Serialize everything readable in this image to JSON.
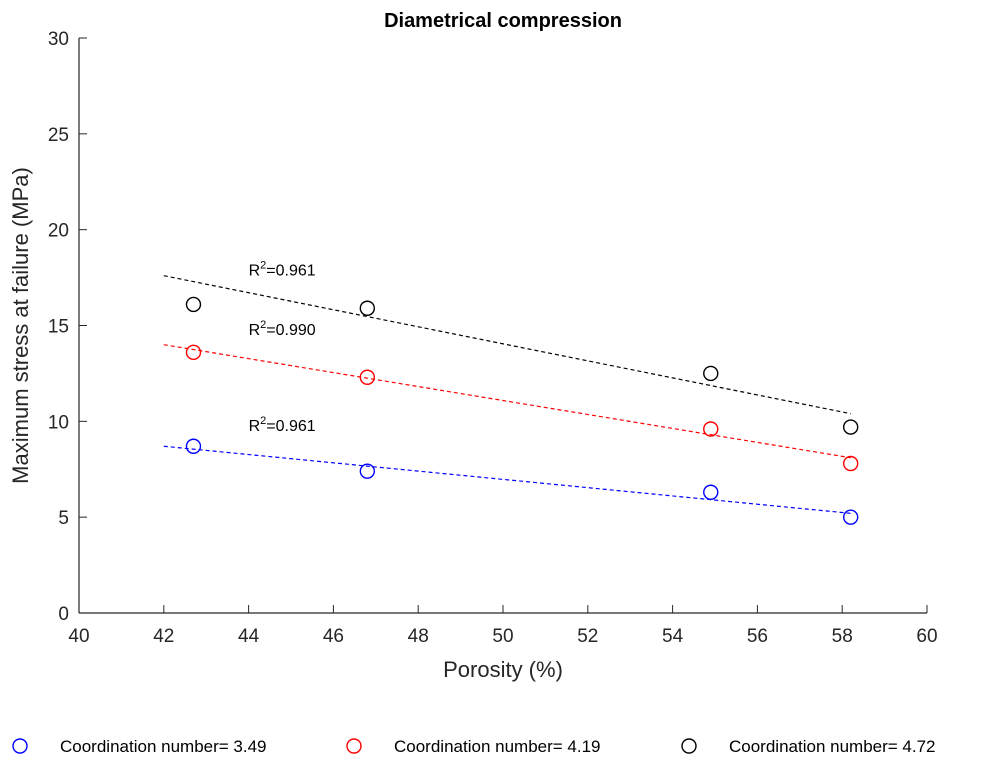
{
  "chart_data": {
    "type": "scatter",
    "title": "Diametrical compression",
    "xlabel": "Porosity (%)",
    "ylabel": "Maximum stress at failure (MPa)",
    "xlim": [
      40,
      60
    ],
    "ylim": [
      0,
      30
    ],
    "xticks": [
      40,
      42,
      44,
      46,
      48,
      50,
      52,
      54,
      56,
      58,
      60
    ],
    "yticks": [
      0,
      5,
      10,
      15,
      20,
      25,
      30
    ],
    "grid": false,
    "legend_position": "bottom",
    "series": [
      {
        "name": "Coordination number= 3.49",
        "color": "#0000ff",
        "x": [
          42.7,
          46.8,
          54.9,
          58.2
        ],
        "y": [
          8.7,
          7.4,
          6.3,
          5.0
        ],
        "fit": {
          "x": [
            42.0,
            58.2
          ],
          "y": [
            8.7,
            5.2
          ],
          "r2_prefix": "R",
          "r2_sup": "2",
          "r2_text": "=0.961",
          "label_at": [
            44.0,
            9.5
          ]
        }
      },
      {
        "name": "Coordination number= 4.19",
        "color": "#ff0000",
        "x": [
          42.7,
          46.8,
          54.9,
          58.2
        ],
        "y": [
          13.6,
          12.3,
          9.6,
          7.8
        ],
        "fit": {
          "x": [
            42.0,
            58.2
          ],
          "y": [
            14.0,
            8.1
          ],
          "r2_prefix": "R",
          "r2_sup": "2",
          "r2_text": "=0.990",
          "label_at": [
            44.0,
            14.5
          ]
        }
      },
      {
        "name": "Coordination number= 4.72",
        "color": "#000000",
        "x": [
          42.7,
          46.8,
          54.9,
          58.2
        ],
        "y": [
          16.1,
          15.9,
          12.5,
          9.7
        ],
        "fit": {
          "x": [
            42.0,
            58.2
          ],
          "y": [
            17.6,
            10.4
          ],
          "r2_prefix": "R",
          "r2_sup": "2",
          "r2_text": "=0.961",
          "label_at": [
            44.0,
            17.6
          ]
        }
      }
    ]
  }
}
